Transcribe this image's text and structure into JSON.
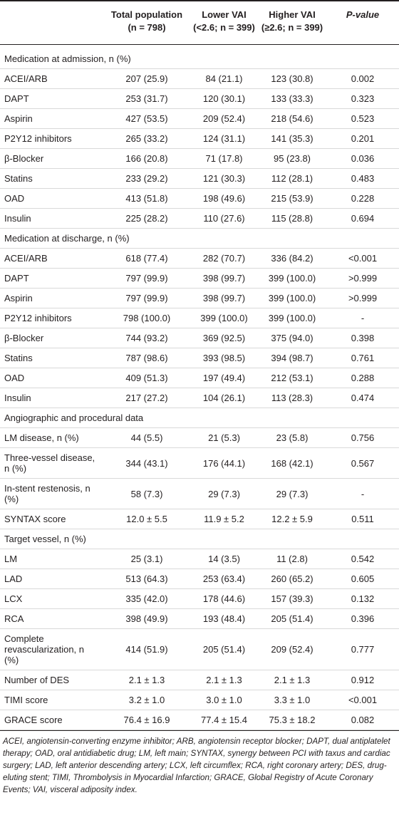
{
  "table": {
    "header": [
      "",
      "Total population (n = 798)",
      "Lower VAI (<2.6; n = 399)",
      "Higher VAI (≥2.6; n = 399)",
      "P-value"
    ],
    "sections": [
      {
        "title": "Medication at admission, n (%)",
        "rows": [
          [
            "ACEI/ARB",
            "207 (25.9)",
            "84 (21.1)",
            "123 (30.8)",
            "0.002"
          ],
          [
            "DAPT",
            "253 (31.7)",
            "120 (30.1)",
            "133 (33.3)",
            "0.323"
          ],
          [
            "Aspirin",
            "427 (53.5)",
            "209 (52.4)",
            "218 (54.6)",
            "0.523"
          ],
          [
            "P2Y12 inhibitors",
            "265 (33.2)",
            "124 (31.1)",
            "141 (35.3)",
            "0.201"
          ],
          [
            "β-Blocker",
            "166 (20.8)",
            "71 (17.8)",
            "95 (23.8)",
            "0.036"
          ],
          [
            "Statins",
            "233 (29.2)",
            "121 (30.3)",
            "112 (28.1)",
            "0.483"
          ],
          [
            "OAD",
            "413 (51.8)",
            "198 (49.6)",
            "215 (53.9)",
            "0.228"
          ],
          [
            "Insulin",
            "225 (28.2)",
            "110 (27.6)",
            "115 (28.8)",
            "0.694"
          ]
        ]
      },
      {
        "title": "Medication at discharge, n (%)",
        "rows": [
          [
            "ACEI/ARB",
            "618 (77.4)",
            "282 (70.7)",
            "336 (84.2)",
            "<0.001"
          ],
          [
            "DAPT",
            "797 (99.9)",
            "398 (99.7)",
            "399 (100.0)",
            ">0.999"
          ],
          [
            "Aspirin",
            "797 (99.9)",
            "398 (99.7)",
            "399 (100.0)",
            ">0.999"
          ],
          [
            "P2Y12 inhibitors",
            "798 (100.0)",
            "399 (100.0)",
            "399 (100.0)",
            "-"
          ],
          [
            "β-Blocker",
            "744 (93.2)",
            "369 (92.5)",
            "375 (94.0)",
            "0.398"
          ],
          [
            "Statins",
            "787 (98.6)",
            "393 (98.5)",
            "394 (98.7)",
            "0.761"
          ],
          [
            "OAD",
            "409 (51.3)",
            "197 (49.4)",
            "212 (53.1)",
            "0.288"
          ],
          [
            "Insulin",
            "217 (27.2)",
            "104 (26.1)",
            "113 (28.3)",
            "0.474"
          ]
        ]
      },
      {
        "title": "Angiographic and procedural data",
        "rows": [
          [
            "LM disease, n (%)",
            "44 (5.5)",
            "21 (5.3)",
            "23 (5.8)",
            "0.756"
          ],
          [
            "Three-vessel disease, n (%)",
            "344 (43.1)",
            "176 (44.1)",
            "168 (42.1)",
            "0.567"
          ],
          [
            "In-stent restenosis, n (%)",
            "58 (7.3)",
            "29 (7.3)",
            "29 (7.3)",
            "-"
          ],
          [
            "SYNTAX score",
            "12.0 ± 5.5",
            "11.9 ± 5.2",
            "12.2 ± 5.9",
            "0.511"
          ]
        ]
      },
      {
        "title": "Target vessel, n (%)",
        "rows": [
          [
            "LM",
            "25 (3.1)",
            "14 (3.5)",
            "11 (2.8)",
            "0.542"
          ],
          [
            "LAD",
            "513 (64.3)",
            "253 (63.4)",
            "260 (65.2)",
            "0.605"
          ],
          [
            "LCX",
            "335 (42.0)",
            "178 (44.6)",
            "157 (39.3)",
            "0.132"
          ],
          [
            "RCA",
            "398 (49.9)",
            "193 (48.4)",
            "205 (51.4)",
            "0.396"
          ],
          [
            "Complete revascularization, n (%)",
            "414 (51.9)",
            "205 (51.4)",
            "209 (52.4)",
            "0.777"
          ],
          [
            "Number of DES",
            "2.1 ± 1.3",
            "2.1 ± 1.3",
            "2.1 ± 1.3",
            "0.912"
          ],
          [
            "TIMI score",
            "3.2 ± 1.0",
            "3.0 ± 1.0",
            "3.3 ± 1.0",
            "<0.001"
          ],
          [
            "GRACE score",
            "76.4 ± 16.9",
            "77.4 ± 15.4",
            "75.3 ± 18.2",
            "0.082"
          ]
        ]
      }
    ],
    "footnote": "ACEI, angiotensin-converting enzyme inhibitor; ARB, angiotensin receptor blocker; DAPT, dual antiplatelet therapy; OAD, oral antidiabetic drug; LM, left main; SYNTAX, synergy between PCI with taxus and cardiac surgery; LAD, left anterior descending artery; LCX, left circumflex; RCA, right coronary artery; DES, drug-eluting stent; TIMI, Thrombolysis in Myocardial Infarction; GRACE, Global Registry of Acute Coronary Events; VAI, visceral adiposity index."
  }
}
